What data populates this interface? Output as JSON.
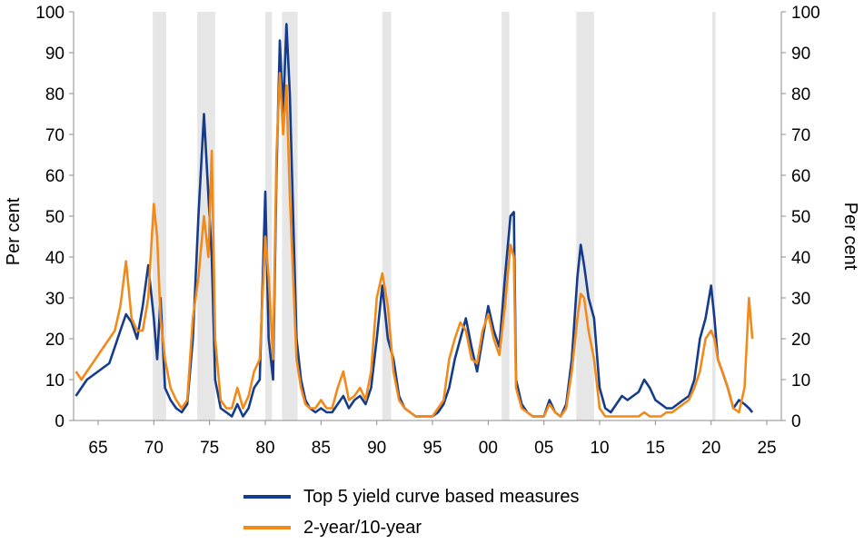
{
  "chart_data": {
    "type": "line",
    "title": "",
    "xlabel": "",
    "ylabel": "Per cent",
    "ylabel_right": "Per cent",
    "xlim": [
      1962.8,
      2026.3
    ],
    "ylim": [
      0,
      100
    ],
    "x_ticks": [
      1965,
      1970,
      1975,
      1980,
      1985,
      1990,
      1995,
      2000,
      2005,
      2010,
      2015,
      2020,
      2025
    ],
    "x_tick_labels": [
      "65",
      "70",
      "75",
      "80",
      "85",
      "90",
      "95",
      "00",
      "05",
      "10",
      "15",
      "20",
      "25"
    ],
    "y_ticks": [
      0,
      10,
      20,
      30,
      40,
      50,
      60,
      70,
      80,
      90,
      100
    ],
    "y_tick_labels": [
      "0",
      "10",
      "20",
      "30",
      "40",
      "50",
      "60",
      "70",
      "80",
      "90",
      "100"
    ],
    "grid": false,
    "legend_position": "bottom",
    "recession_bands": [
      [
        1969.9,
        1971.1
      ],
      [
        1973.9,
        1975.5
      ],
      [
        1980.0,
        1980.6
      ],
      [
        1981.5,
        1982.9
      ],
      [
        1990.5,
        1991.3
      ],
      [
        2001.2,
        2001.9
      ],
      [
        2007.9,
        2009.5
      ],
      [
        2020.1,
        2020.4
      ]
    ],
    "series": [
      {
        "name": "Top 5 yield curve based measures",
        "color": "#153C8C",
        "x": [
          1963.0,
          1963.5,
          1964.0,
          1964.5,
          1965.0,
          1965.5,
          1966.0,
          1966.5,
          1967.0,
          1967.5,
          1968.0,
          1968.5,
          1969.0,
          1969.5,
          1970.0,
          1970.3,
          1970.6,
          1971.0,
          1971.5,
          1972.0,
          1972.5,
          1973.0,
          1973.5,
          1974.0,
          1974.5,
          1974.9,
          1975.2,
          1975.5,
          1976.0,
          1976.5,
          1977.0,
          1977.5,
          1978.0,
          1978.5,
          1979.0,
          1979.5,
          1980.0,
          1980.3,
          1980.7,
          1981.0,
          1981.3,
          1981.6,
          1981.9,
          1982.2,
          1982.5,
          1982.8,
          1983.2,
          1983.6,
          1984.0,
          1984.5,
          1985.0,
          1985.5,
          1986.0,
          1986.5,
          1987.0,
          1987.5,
          1988.0,
          1988.5,
          1989.0,
          1989.5,
          1990.0,
          1990.5,
          1991.0,
          1991.5,
          1992.0,
          1992.5,
          1993.0,
          1993.5,
          1994.0,
          1994.5,
          1995.0,
          1995.5,
          1996.0,
          1996.5,
          1997.0,
          1997.5,
          1998.0,
          1998.5,
          1999.0,
          1999.5,
          2000.0,
          2000.5,
          2001.0,
          2001.5,
          2002.0,
          2002.3,
          2002.5,
          2003.0,
          2003.5,
          2004.0,
          2004.5,
          2005.0,
          2005.5,
          2006.0,
          2006.5,
          2007.0,
          2007.5,
          2008.0,
          2008.3,
          2008.6,
          2009.0,
          2009.5,
          2010.0,
          2010.5,
          2011.0,
          2011.5,
          2012.0,
          2012.5,
          2013.0,
          2013.5,
          2014.0,
          2014.5,
          2015.0,
          2015.5,
          2016.0,
          2016.5,
          2017.0,
          2017.5,
          2018.0,
          2018.5,
          2019.0,
          2019.5,
          2020.0,
          2020.3,
          2020.6,
          2021.0,
          2021.5,
          2022.0,
          2022.5,
          2023.0,
          2023.4,
          2023.7
        ],
        "y": [
          6,
          8,
          10,
          11,
          12,
          13,
          14,
          18,
          22,
          26,
          24,
          20,
          28,
          38,
          25,
          15,
          30,
          8,
          5,
          3,
          2,
          4,
          20,
          50,
          75,
          55,
          40,
          10,
          3,
          2,
          1,
          4,
          1,
          3,
          8,
          10,
          56,
          20,
          10,
          60,
          93,
          75,
          97,
          80,
          50,
          20,
          10,
          5,
          3,
          2,
          3,
          2,
          2,
          4,
          6,
          3,
          5,
          6,
          4,
          8,
          20,
          33,
          20,
          15,
          6,
          3,
          2,
          1,
          1,
          1,
          1,
          2,
          4,
          8,
          15,
          20,
          25,
          18,
          12,
          20,
          28,
          22,
          18,
          35,
          50,
          51,
          10,
          4,
          2,
          1,
          1,
          1,
          5,
          2,
          1,
          4,
          15,
          35,
          43,
          38,
          30,
          25,
          8,
          3,
          2,
          4,
          6,
          5,
          6,
          7,
          10,
          8,
          5,
          4,
          3,
          3,
          4,
          5,
          6,
          10,
          20,
          25,
          33,
          25,
          15,
          12,
          8,
          3,
          5,
          4,
          3,
          2
        ]
      },
      {
        "name": "2-year/10-year",
        "color": "#F28A1A",
        "x": [
          1963.0,
          1963.5,
          1964.0,
          1964.5,
          1965.0,
          1965.5,
          1966.0,
          1966.5,
          1967.0,
          1967.5,
          1968.0,
          1968.5,
          1969.0,
          1969.5,
          1970.0,
          1970.3,
          1970.6,
          1971.0,
          1971.5,
          1972.0,
          1972.5,
          1973.0,
          1973.5,
          1974.0,
          1974.5,
          1974.9,
          1975.2,
          1975.5,
          1976.0,
          1976.5,
          1977.0,
          1977.5,
          1978.0,
          1978.5,
          1979.0,
          1979.5,
          1980.0,
          1980.3,
          1980.7,
          1981.0,
          1981.3,
          1981.6,
          1981.9,
          1982.2,
          1982.5,
          1982.8,
          1983.2,
          1983.6,
          1984.0,
          1984.5,
          1985.0,
          1985.5,
          1986.0,
          1986.5,
          1987.0,
          1987.5,
          1988.0,
          1988.5,
          1989.0,
          1989.5,
          1990.0,
          1990.5,
          1991.0,
          1991.5,
          1992.0,
          1992.5,
          1993.0,
          1993.5,
          1994.0,
          1994.5,
          1995.0,
          1995.5,
          1996.0,
          1996.5,
          1997.0,
          1997.5,
          1998.0,
          1998.5,
          1999.0,
          1999.5,
          2000.0,
          2000.5,
          2001.0,
          2001.5,
          2002.0,
          2002.3,
          2002.5,
          2003.0,
          2003.5,
          2004.0,
          2004.5,
          2005.0,
          2005.5,
          2006.0,
          2006.5,
          2007.0,
          2007.5,
          2008.0,
          2008.3,
          2008.6,
          2009.0,
          2009.5,
          2010.0,
          2010.5,
          2011.0,
          2011.5,
          2012.0,
          2012.5,
          2013.0,
          2013.5,
          2014.0,
          2014.5,
          2015.0,
          2015.5,
          2016.0,
          2016.5,
          2017.0,
          2017.5,
          2018.0,
          2018.5,
          2019.0,
          2019.5,
          2020.0,
          2020.3,
          2020.6,
          2021.0,
          2021.5,
          2022.0,
          2022.5,
          2023.0,
          2023.4,
          2023.7
        ],
        "y": [
          12,
          10,
          12,
          14,
          16,
          18,
          20,
          22,
          28,
          39,
          25,
          22,
          22,
          30,
          53,
          45,
          25,
          15,
          8,
          5,
          3,
          5,
          25,
          35,
          50,
          40,
          66,
          20,
          5,
          3,
          3,
          8,
          3,
          6,
          12,
          15,
          45,
          35,
          15,
          65,
          85,
          70,
          82,
          55,
          35,
          15,
          8,
          4,
          3,
          3,
          5,
          3,
          3,
          8,
          12,
          5,
          6,
          8,
          5,
          12,
          30,
          36,
          28,
          12,
          5,
          3,
          2,
          1,
          1,
          1,
          1,
          3,
          5,
          15,
          20,
          24,
          22,
          15,
          14,
          22,
          26,
          20,
          16,
          28,
          43,
          40,
          8,
          3,
          2,
          1,
          1,
          1,
          4,
          2,
          1,
          3,
          12,
          25,
          31,
          30,
          22,
          15,
          3,
          1,
          1,
          1,
          1,
          1,
          1,
          1,
          2,
          1,
          1,
          1,
          2,
          2,
          3,
          4,
          5,
          8,
          12,
          20,
          22,
          20,
          15,
          12,
          8,
          3,
          2,
          8,
          30,
          20
        ]
      }
    ]
  }
}
